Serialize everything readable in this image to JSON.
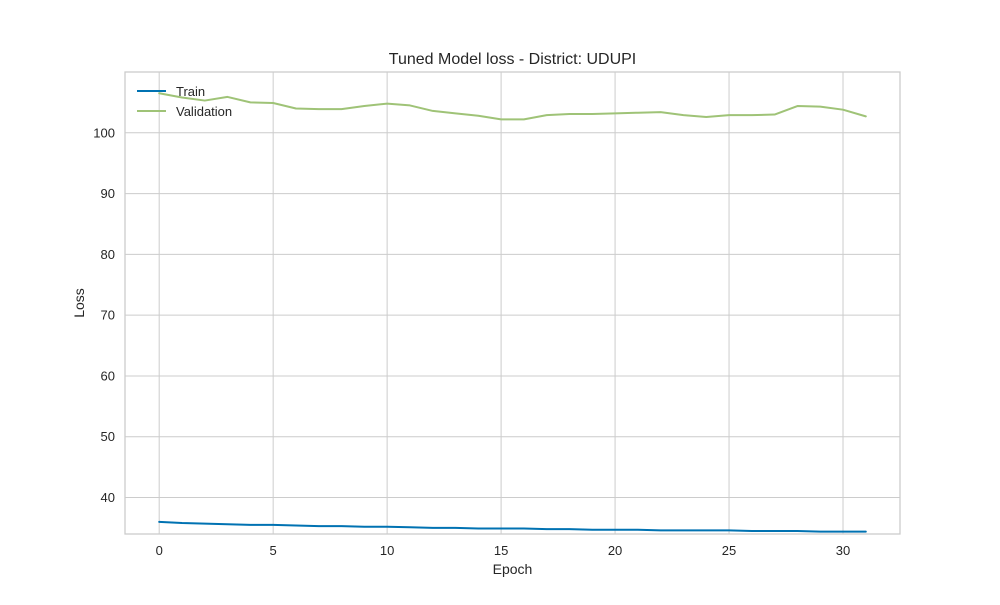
{
  "chart_data": {
    "type": "line",
    "title": "Tuned Model loss - District: UDUPI",
    "xlabel": "Epoch",
    "ylabel": "Loss",
    "xlim": [
      -1.5,
      32.5
    ],
    "ylim": [
      34.0,
      110.0
    ],
    "xticks": [
      0,
      5,
      10,
      15,
      20,
      25,
      30
    ],
    "yticks": [
      40,
      50,
      60,
      70,
      80,
      90,
      100
    ],
    "grid": true,
    "legend_position": "top-left",
    "x": [
      0,
      1,
      2,
      3,
      4,
      5,
      6,
      7,
      8,
      9,
      10,
      11,
      12,
      13,
      14,
      15,
      16,
      17,
      18,
      19,
      20,
      21,
      22,
      23,
      24,
      25,
      26,
      27,
      28,
      29,
      30,
      31
    ],
    "series": [
      {
        "name": "Train",
        "color": "#0072b2",
        "values": [
          36.0,
          35.8,
          35.7,
          35.6,
          35.5,
          35.5,
          35.4,
          35.3,
          35.3,
          35.2,
          35.2,
          35.1,
          35.0,
          35.0,
          34.9,
          34.9,
          34.9,
          34.8,
          34.8,
          34.7,
          34.7,
          34.7,
          34.6,
          34.6,
          34.6,
          34.6,
          34.5,
          34.5,
          34.5,
          34.4,
          34.4,
          34.4
        ]
      },
      {
        "name": "Validation",
        "color": "#9fc377",
        "values": [
          106.5,
          105.8,
          105.3,
          105.9,
          105.0,
          104.9,
          104.0,
          103.9,
          103.9,
          104.4,
          104.8,
          104.5,
          103.6,
          103.2,
          102.8,
          102.2,
          102.2,
          102.9,
          103.1,
          103.1,
          103.2,
          103.3,
          103.4,
          102.9,
          102.6,
          102.9,
          102.9,
          103.0,
          104.4,
          104.3,
          103.8,
          102.7
        ]
      }
    ]
  }
}
